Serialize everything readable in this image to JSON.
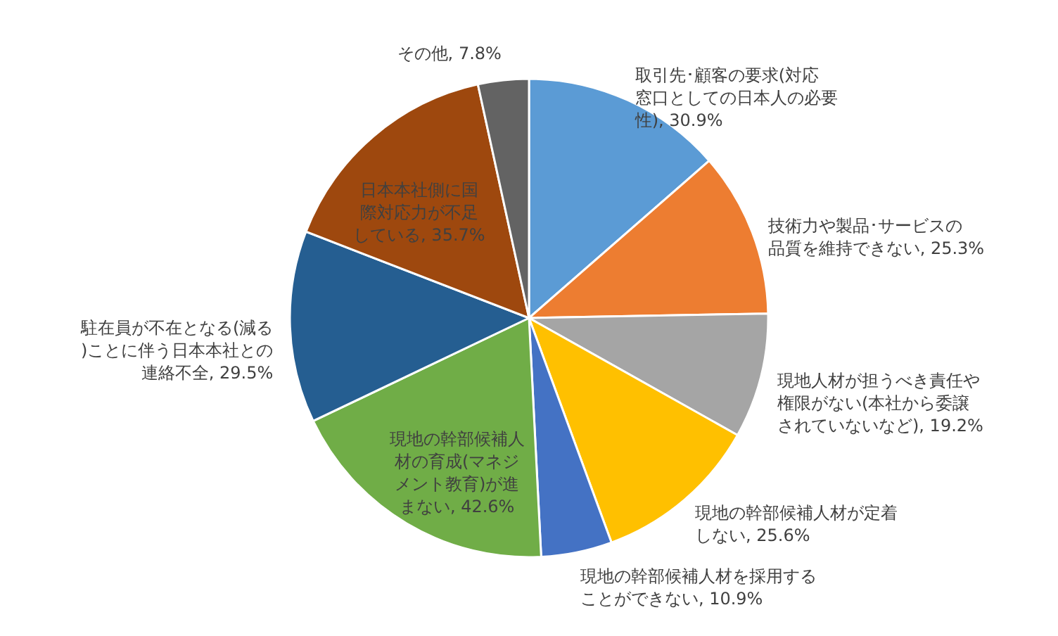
{
  "chart_data": {
    "type": "pie",
    "categories": [
      "取引先･顧客の要求(対応窓口としての日本人の必要性)",
      "技術力や製品･サービスの品質を維持できない",
      "現地人材が担うべき責任や権限がない(本社から委譲されていないなど)",
      "現地の幹部候補人材が定着しない",
      "現地の幹部候補人材を採用することができない",
      "現地の幹部候補人材の育成(マネジメント教育)が進まない",
      "駐在員が不在となる(減る)ことに伴う日本本社との連絡不全",
      "日本本社側に国際対応力が不足している",
      "その他"
    ],
    "values": [
      30.9,
      25.3,
      19.2,
      25.6,
      10.9,
      42.6,
      29.5,
      35.7,
      7.8
    ],
    "value_labels": [
      "30.9%",
      "25.3%",
      "19.2%",
      "25.6%",
      "10.9%",
      "42.6%",
      "29.5%",
      "35.7%",
      "7.8%"
    ],
    "colors": [
      "#5b9bd5",
      "#ed7d31",
      "#a5a5a5",
      "#ffc000",
      "#4472c4",
      "#70ad47",
      "#255e91",
      "#9e480e",
      "#636363"
    ]
  }
}
